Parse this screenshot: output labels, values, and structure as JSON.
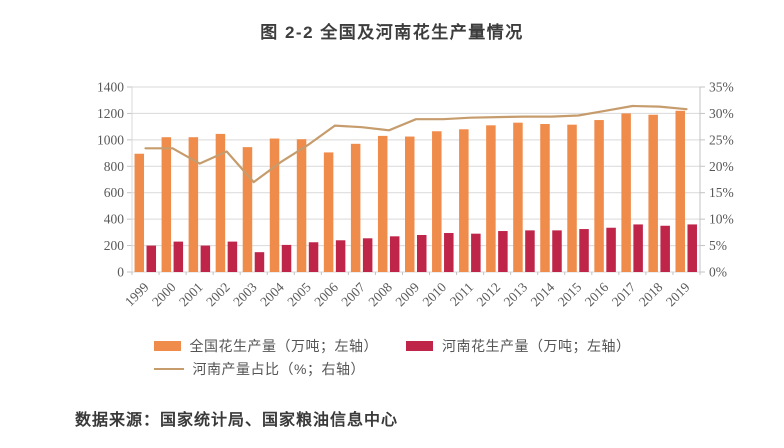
{
  "title": "图 2-2  全国及河南花生产量情况",
  "source_note": "数据来源：国家统计局、国家粮油信息中心",
  "colors": {
    "national_bar": "#ef8c4c",
    "henan_bar": "#bf2449",
    "share_line": "#c69c6d",
    "gridline": "#d9d9d9",
    "axis_text": "#595959"
  },
  "chart_data": {
    "type": "bar",
    "title": "图 2-2  全国及河南花生产量情况",
    "categories": [
      "1999",
      "2000",
      "2001",
      "2002",
      "2003",
      "2004",
      "2005",
      "2006",
      "2007",
      "2008",
      "2009",
      "2010",
      "2011",
      "2012",
      "2013",
      "2014",
      "2015",
      "2016",
      "2017",
      "2018",
      "2019"
    ],
    "series": [
      {
        "name": "全国花生产量（万吨；左轴）",
        "type": "bar",
        "axis": "left",
        "color": "#ef8c4c",
        "values": [
          895,
          1020,
          1020,
          1045,
          945,
          1010,
          1005,
          905,
          970,
          1030,
          1025,
          1065,
          1080,
          1110,
          1130,
          1120,
          1115,
          1150,
          1200,
          1190,
          1220
        ]
      },
      {
        "name": "河南花生产量（万吨；左轴）",
        "type": "bar",
        "axis": "left",
        "color": "#bf2449",
        "values": [
          200,
          230,
          200,
          230,
          150,
          205,
          225,
          240,
          255,
          270,
          280,
          295,
          290,
          310,
          315,
          315,
          325,
          335,
          360,
          350,
          360
        ]
      },
      {
        "name": "河南产量占比（%；右轴）",
        "type": "line",
        "axis": "right",
        "color": "#c69c6d",
        "values": [
          23.4,
          23.4,
          20.5,
          22.8,
          17.0,
          20.8,
          24.0,
          27.7,
          27.4,
          26.8,
          28.9,
          28.9,
          29.2,
          29.3,
          29.4,
          29.4,
          29.6,
          30.5,
          31.4,
          31.3,
          30.8
        ]
      }
    ],
    "left_axis": {
      "min": 0,
      "max": 1400,
      "step": 200,
      "ticks": [
        "0",
        "200",
        "400",
        "600",
        "800",
        "1000",
        "1200",
        "1400"
      ]
    },
    "right_axis": {
      "min": 0,
      "max": 35,
      "step": 5,
      "ticks": [
        "0%",
        "5%",
        "10%",
        "15%",
        "20%",
        "25%",
        "30%",
        "35%"
      ]
    },
    "grid": true,
    "legend_position": "bottom"
  }
}
